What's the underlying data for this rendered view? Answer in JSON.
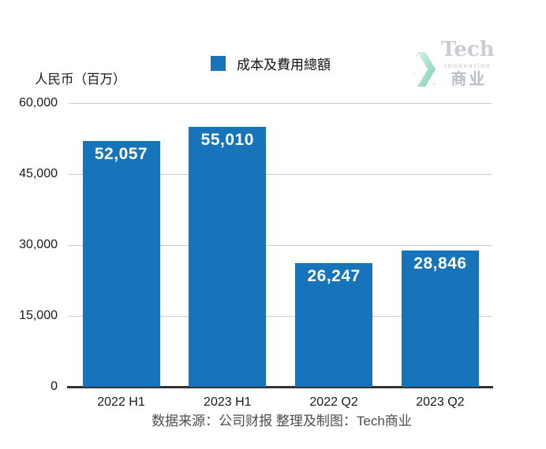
{
  "legend": {
    "label": "成本及費用總額"
  },
  "y_axis_title": "人民币（百万）",
  "logo": {
    "name": "Tech",
    "subtitle": "innovation",
    "cn": "商业",
    "chevron_colors": [
      "#d8f1e5",
      "#6fcdaa"
    ],
    "text_color": "#c7ccd2"
  },
  "footer": {
    "caption": "数据来源：公司财报 整理及制图：Tech商业"
  },
  "chart_data": {
    "type": "bar",
    "title": "",
    "series_name": "成本及費用總額",
    "categories": [
      "2022 H1",
      "2023 H1",
      "2022 Q2",
      "2023 Q2"
    ],
    "values": [
      52057,
      55010,
      26247,
      28846
    ],
    "value_labels": [
      "52,057",
      "55,010",
      "26,247",
      "28,846"
    ],
    "ylabel": "人民币（百万）",
    "ylim": [
      0,
      60000
    ],
    "yticks": [
      0,
      15000,
      30000,
      45000,
      60000
    ],
    "ytick_labels": [
      "0",
      "15,000",
      "30,000",
      "45,000",
      "60,000"
    ],
    "grid": "horizontal",
    "legend_position": "top-center",
    "bar_color": "#1774ba",
    "value_label_color": "#ffffff",
    "gridline_color": "#cbcbcb",
    "axis_line_color": "#333333",
    "source_note": "数据来源：公司财报 整理及制图：Tech商业"
  }
}
